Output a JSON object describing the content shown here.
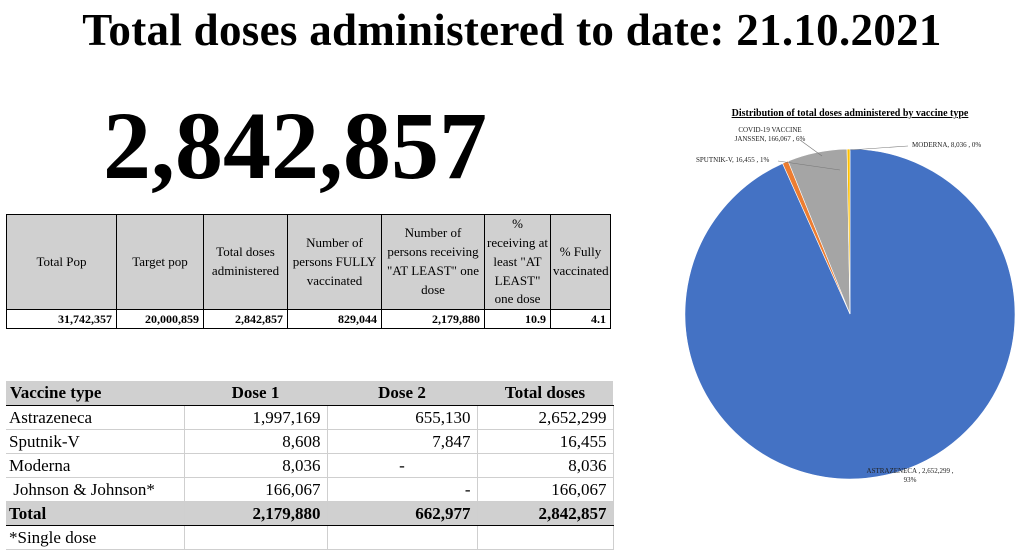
{
  "header": {
    "title": "Total doses administered to date: 21.10.2021",
    "big_number": "2,842,857"
  },
  "stats_table": {
    "headers": [
      "Total Pop",
      "Target pop",
      "Total doses administered",
      "Number of persons FULLY vaccinated",
      "Number of persons receiving \"AT LEAST\" one dose",
      "% receiving at least \"AT LEAST\" one dose",
      "% Fully vaccinated"
    ],
    "values": [
      "31,742,357",
      "20,000,859",
      "2,842,857",
      "829,044",
      "2,179,880",
      "10.9",
      "4.1"
    ]
  },
  "vaccine_table": {
    "headers": [
      "Vaccine type",
      "Dose 1",
      "Dose 2",
      "Total doses"
    ],
    "rows": [
      {
        "name": "Astrazeneca",
        "dose1": "1,997,169",
        "dose2": "655,130",
        "total": "2,652,299"
      },
      {
        "name": "Sputnik-V",
        "dose1": "8,608",
        "dose2": "7,847",
        "total": "16,455"
      },
      {
        "name": "Moderna",
        "dose1": "8,036",
        "dose2": "-",
        "total": "8,036"
      },
      {
        "name": " Johnson & Johnson*",
        "dose1": "166,067",
        "dose2": "-",
        "total": "166,067"
      }
    ],
    "total": {
      "name": "Total",
      "dose1": "2,179,880",
      "dose2": "662,977",
      "total": "2,842,857"
    },
    "footnote": "*Single dose"
  },
  "chart_data": {
    "type": "pie",
    "title": "Distribution of total doses administered by vaccine type",
    "slices": [
      {
        "label": "ASTRAZENECA , 2,652,299 , 93%",
        "value": 2652299,
        "color": "#4472c4"
      },
      {
        "label": "SPUTNIK-V, 16,455 , 1%",
        "value": 16455,
        "color": "#ed7d31"
      },
      {
        "label": "COVID-19 VACCINE JANSSEN, 166,067 , 6%",
        "value": 166067,
        "color": "#a5a5a5"
      },
      {
        "label": "MODERNA, 8,036 , 0%",
        "value": 8036,
        "color": "#ffc000"
      }
    ]
  }
}
